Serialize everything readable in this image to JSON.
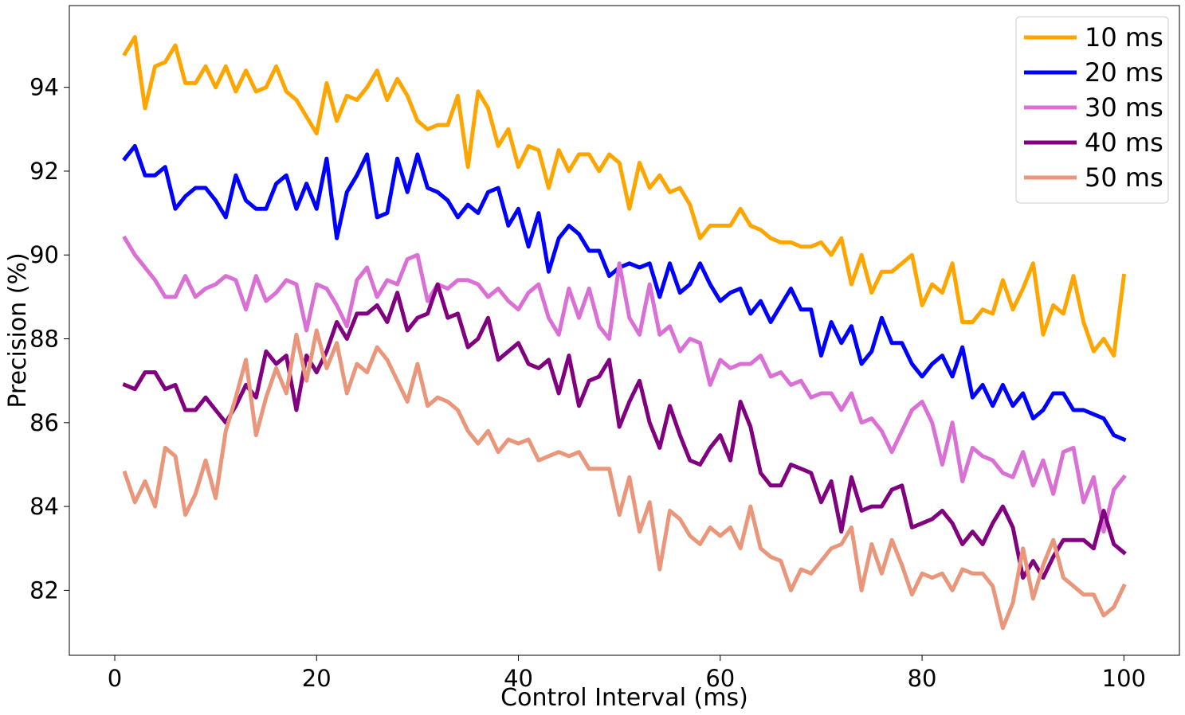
{
  "chart_data": {
    "type": "line",
    "title": "",
    "xlabel": "Control Interval (ms)",
    "ylabel": "Precision (%)",
    "xlim": [
      -4.5,
      105.5
    ],
    "ylim": [
      80.45,
      95.95
    ],
    "xticks": [
      0,
      20,
      40,
      60,
      80,
      100
    ],
    "yticks": [
      82,
      84,
      86,
      88,
      90,
      92,
      94
    ],
    "grid": false,
    "legend_position": "top-right",
    "series": [
      {
        "name": "10 ms",
        "color": "#FFA500",
        "x": [
          1,
          2,
          3,
          4,
          5,
          6,
          7,
          8,
          9,
          10,
          11,
          12,
          13,
          14,
          15,
          16,
          17,
          18,
          19,
          20,
          21,
          22,
          23,
          24,
          25,
          26,
          27,
          28,
          29,
          30,
          31,
          32,
          33,
          34,
          35,
          36,
          37,
          38,
          39,
          40,
          41,
          42,
          43,
          44,
          45,
          46,
          47,
          48,
          49,
          50,
          51,
          52,
          53,
          54,
          55,
          56,
          57,
          58,
          59,
          60,
          61,
          62,
          63,
          64,
          65,
          66,
          67,
          68,
          69,
          70,
          71,
          72,
          73,
          74,
          75,
          76,
          77,
          78,
          79,
          80,
          81,
          82,
          83,
          84,
          85,
          86,
          87,
          88,
          89,
          90,
          91,
          92,
          93,
          94,
          95,
          96,
          97,
          98,
          99,
          100
        ],
        "values": [
          94.8,
          95.2,
          93.5,
          94.5,
          94.6,
          95.0,
          94.1,
          94.1,
          94.5,
          94.0,
          94.5,
          93.9,
          94.4,
          93.9,
          94.0,
          94.5,
          93.9,
          93.7,
          93.3,
          92.9,
          94.1,
          93.2,
          93.8,
          93.7,
          94.0,
          94.4,
          93.7,
          94.2,
          93.8,
          93.2,
          93.0,
          93.1,
          93.1,
          93.8,
          92.1,
          93.9,
          93.5,
          92.6,
          93.0,
          92.1,
          92.6,
          92.5,
          91.6,
          92.5,
          92.0,
          92.4,
          92.4,
          92.0,
          92.4,
          92.2,
          91.1,
          92.2,
          91.6,
          91.9,
          91.5,
          91.6,
          91.2,
          90.4,
          90.7,
          90.7,
          90.7,
          91.1,
          90.7,
          90.6,
          90.4,
          90.3,
          90.3,
          90.2,
          90.2,
          90.3,
          90.0,
          90.4,
          89.3,
          90.0,
          89.1,
          89.6,
          89.6,
          89.8,
          90.0,
          88.8,
          89.3,
          89.1,
          89.8,
          88.4,
          88.4,
          88.7,
          88.6,
          89.4,
          88.7,
          89.2,
          89.8,
          88.1,
          88.8,
          88.6,
          89.5,
          88.4,
          87.7,
          88.0,
          87.6,
          89.5
        ]
      },
      {
        "name": "20 ms",
        "color": "#0000FF",
        "x": [
          1,
          2,
          3,
          4,
          5,
          6,
          7,
          8,
          9,
          10,
          11,
          12,
          13,
          14,
          15,
          16,
          17,
          18,
          19,
          20,
          21,
          22,
          23,
          24,
          25,
          26,
          27,
          28,
          29,
          30,
          31,
          32,
          33,
          34,
          35,
          36,
          37,
          38,
          39,
          40,
          41,
          42,
          43,
          44,
          45,
          46,
          47,
          48,
          49,
          50,
          51,
          52,
          53,
          54,
          55,
          56,
          57,
          58,
          59,
          60,
          61,
          62,
          63,
          64,
          65,
          66,
          67,
          68,
          69,
          70,
          71,
          72,
          73,
          74,
          75,
          76,
          77,
          78,
          79,
          80,
          81,
          82,
          83,
          84,
          85,
          86,
          87,
          88,
          89,
          90,
          91,
          92,
          93,
          94,
          95,
          96,
          97,
          98,
          99,
          100
        ],
        "values": [
          92.3,
          92.6,
          91.9,
          91.9,
          92.1,
          91.1,
          91.4,
          91.6,
          91.6,
          91.3,
          90.9,
          91.9,
          91.3,
          91.1,
          91.1,
          91.7,
          91.9,
          91.1,
          91.7,
          91.1,
          92.3,
          90.4,
          91.5,
          91.9,
          92.4,
          90.9,
          91.0,
          92.3,
          91.5,
          92.4,
          91.6,
          91.5,
          91.3,
          90.9,
          91.2,
          91.0,
          91.5,
          91.6,
          90.7,
          91.1,
          90.2,
          91.0,
          89.6,
          90.4,
          90.7,
          90.5,
          90.1,
          90.1,
          89.5,
          89.7,
          89.8,
          89.7,
          89.8,
          89.0,
          89.8,
          89.1,
          89.3,
          89.8,
          89.3,
          88.9,
          89.1,
          89.2,
          88.6,
          88.9,
          88.4,
          88.8,
          89.2,
          88.7,
          88.7,
          87.6,
          88.4,
          87.9,
          88.3,
          87.4,
          87.7,
          88.5,
          87.9,
          87.9,
          87.4,
          87.1,
          87.4,
          87.6,
          87.1,
          87.8,
          86.6,
          86.9,
          86.4,
          86.9,
          86.4,
          86.7,
          86.1,
          86.3,
          86.7,
          86.7,
          86.3,
          86.3,
          86.2,
          86.1,
          85.7,
          85.6
        ]
      },
      {
        "name": "30 ms",
        "color": "#DA70D6",
        "x": [
          1,
          2,
          3,
          4,
          5,
          6,
          7,
          8,
          9,
          10,
          11,
          12,
          13,
          14,
          15,
          16,
          17,
          18,
          19,
          20,
          21,
          22,
          23,
          24,
          25,
          26,
          27,
          28,
          29,
          30,
          31,
          32,
          33,
          34,
          35,
          36,
          37,
          38,
          39,
          40,
          41,
          42,
          43,
          44,
          45,
          46,
          47,
          48,
          49,
          50,
          51,
          52,
          53,
          54,
          55,
          56,
          57,
          58,
          59,
          60,
          61,
          62,
          63,
          64,
          65,
          66,
          67,
          68,
          69,
          70,
          71,
          72,
          73,
          74,
          75,
          76,
          77,
          78,
          79,
          80,
          81,
          82,
          83,
          84,
          85,
          86,
          87,
          88,
          89,
          90,
          91,
          92,
          93,
          94,
          95,
          96,
          97,
          98,
          99,
          100
        ],
        "values": [
          90.4,
          90.0,
          89.7,
          89.4,
          89.0,
          89.0,
          89.5,
          89.0,
          89.2,
          89.3,
          89.5,
          89.4,
          88.7,
          89.5,
          88.9,
          89.1,
          89.4,
          89.3,
          88.2,
          89.3,
          89.2,
          88.8,
          88.3,
          89.4,
          89.7,
          89.0,
          89.4,
          89.3,
          89.9,
          90.0,
          88.9,
          89.3,
          89.2,
          89.4,
          89.4,
          89.3,
          89.0,
          89.2,
          88.9,
          88.7,
          89.1,
          89.3,
          88.5,
          88.1,
          89.2,
          88.5,
          89.2,
          88.3,
          88.0,
          89.8,
          88.5,
          88.1,
          89.3,
          88.1,
          88.3,
          87.7,
          88.0,
          87.9,
          86.9,
          87.5,
          87.3,
          87.4,
          87.4,
          87.6,
          87.1,
          87.2,
          86.9,
          87.0,
          86.6,
          86.7,
          86.7,
          86.3,
          86.7,
          86.0,
          86.1,
          85.8,
          85.3,
          85.8,
          86.3,
          86.5,
          86.0,
          85.0,
          86.0,
          84.6,
          85.4,
          85.2,
          85.1,
          84.8,
          84.7,
          85.3,
          84.5,
          85.1,
          84.3,
          85.3,
          85.4,
          84.1,
          84.7,
          83.4,
          84.4,
          84.7
        ]
      },
      {
        "name": "40 ms",
        "color": "#800080",
        "x": [
          1,
          2,
          3,
          4,
          5,
          6,
          7,
          8,
          9,
          10,
          11,
          12,
          13,
          14,
          15,
          16,
          17,
          18,
          19,
          20,
          21,
          22,
          23,
          24,
          25,
          26,
          27,
          28,
          29,
          30,
          31,
          32,
          33,
          34,
          35,
          36,
          37,
          38,
          39,
          40,
          41,
          42,
          43,
          44,
          45,
          46,
          47,
          48,
          49,
          50,
          51,
          52,
          53,
          54,
          55,
          56,
          57,
          58,
          59,
          60,
          61,
          62,
          63,
          64,
          65,
          66,
          67,
          68,
          69,
          70,
          71,
          72,
          73,
          74,
          75,
          76,
          77,
          78,
          79,
          80,
          81,
          82,
          83,
          84,
          85,
          86,
          87,
          88,
          89,
          90,
          91,
          92,
          93,
          94,
          95,
          96,
          97,
          98,
          99,
          100
        ],
        "values": [
          86.9,
          86.8,
          87.2,
          87.2,
          86.8,
          86.9,
          86.3,
          86.3,
          86.6,
          86.3,
          86.0,
          86.4,
          86.9,
          86.6,
          87.7,
          87.4,
          87.6,
          86.3,
          87.6,
          87.2,
          87.7,
          88.4,
          88.0,
          88.6,
          88.6,
          88.8,
          88.4,
          89.1,
          88.2,
          88.5,
          88.6,
          89.3,
          88.5,
          88.6,
          87.8,
          88.0,
          88.5,
          87.5,
          87.7,
          87.9,
          87.4,
          87.3,
          87.5,
          86.7,
          87.6,
          86.4,
          87.0,
          87.1,
          87.5,
          85.9,
          86.5,
          87.0,
          86.0,
          85.4,
          86.4,
          85.7,
          85.1,
          85.0,
          85.4,
          85.7,
          85.1,
          86.5,
          85.9,
          84.8,
          84.5,
          84.5,
          85.0,
          84.9,
          84.8,
          84.1,
          84.6,
          83.4,
          84.7,
          83.9,
          84.0,
          84.0,
          84.4,
          84.5,
          83.5,
          83.6,
          83.7,
          83.9,
          83.6,
          83.1,
          83.4,
          83.1,
          83.6,
          84.0,
          83.5,
          82.3,
          82.7,
          82.3,
          82.8,
          83.2,
          83.2,
          83.2,
          83.0,
          83.9,
          83.1,
          82.9
        ]
      },
      {
        "name": "50 ms",
        "color": "#E9967A",
        "x": [
          1,
          2,
          3,
          4,
          5,
          6,
          7,
          8,
          9,
          10,
          11,
          12,
          13,
          14,
          15,
          16,
          17,
          18,
          19,
          20,
          21,
          22,
          23,
          24,
          25,
          26,
          27,
          28,
          29,
          30,
          31,
          32,
          33,
          34,
          35,
          36,
          37,
          38,
          39,
          40,
          41,
          42,
          43,
          44,
          45,
          46,
          47,
          48,
          49,
          50,
          51,
          52,
          53,
          54,
          55,
          56,
          57,
          58,
          59,
          60,
          61,
          62,
          63,
          64,
          65,
          66,
          67,
          68,
          69,
          70,
          71,
          72,
          73,
          74,
          75,
          76,
          77,
          78,
          79,
          80,
          81,
          82,
          83,
          84,
          85,
          86,
          87,
          88,
          89,
          90,
          91,
          92,
          93,
          94,
          95,
          96,
          97,
          98,
          99,
          100
        ],
        "values": [
          84.8,
          84.1,
          84.6,
          84.0,
          85.4,
          85.2,
          83.8,
          84.3,
          85.1,
          84.2,
          85.8,
          86.6,
          87.5,
          85.7,
          86.6,
          87.3,
          86.7,
          88.1,
          87.0,
          88.2,
          87.3,
          87.9,
          86.7,
          87.4,
          87.2,
          87.8,
          87.5,
          87.0,
          86.5,
          87.4,
          86.4,
          86.6,
          86.5,
          86.3,
          85.8,
          85.5,
          85.8,
          85.3,
          85.6,
          85.5,
          85.6,
          85.1,
          85.2,
          85.3,
          85.2,
          85.3,
          84.9,
          84.9,
          84.9,
          83.8,
          84.7,
          83.4,
          84.1,
          82.5,
          83.9,
          83.7,
          83.3,
          83.1,
          83.5,
          83.3,
          83.5,
          83.0,
          84.0,
          83.0,
          82.8,
          82.7,
          82.0,
          82.5,
          82.4,
          82.7,
          83.0,
          83.1,
          83.5,
          82.0,
          83.1,
          82.4,
          83.2,
          82.6,
          81.9,
          82.4,
          82.3,
          82.4,
          82.0,
          82.5,
          82.4,
          82.4,
          82.1,
          81.1,
          81.7,
          83.0,
          81.8,
          82.6,
          83.2,
          82.3,
          82.1,
          81.9,
          81.9,
          81.4,
          81.6,
          82.1
        ]
      }
    ]
  }
}
